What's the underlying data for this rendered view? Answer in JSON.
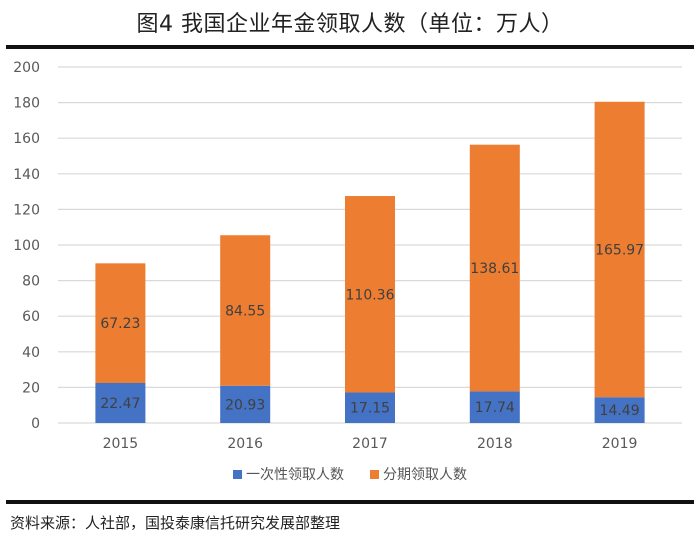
{
  "title": "图4 我国企业年金领取人数（单位：万人）",
  "footer": "资料来源：人社部，国投泰康信托研究发展部整理",
  "chart_data": {
    "type": "bar",
    "stacked": true,
    "title": "图4 我国企业年金领取人数（单位：万人）",
    "xlabel": "",
    "ylabel": "",
    "categories": [
      "2015",
      "2016",
      "2017",
      "2018",
      "2019"
    ],
    "series": [
      {
        "name": "一次性领取人数",
        "color": "#4472C4",
        "values": [
          22.47,
          20.93,
          17.15,
          17.74,
          14.49
        ],
        "labels": [
          "22.47",
          "20.93",
          "17.15",
          "17.74",
          "14.49"
        ]
      },
      {
        "name": "分期领取人数",
        "color": "#ED7D31",
        "values": [
          67.23,
          84.55,
          110.36,
          138.61,
          165.97
        ],
        "labels": [
          "67.23",
          "84.55",
          "110.36",
          "138.61",
          "165.97"
        ]
      }
    ],
    "ylim": [
      0,
      200
    ],
    "yticks": [
      0,
      20,
      40,
      60,
      80,
      100,
      120,
      140,
      160,
      180,
      200
    ],
    "ytick_labels": [
      "0",
      "20",
      "40",
      "60",
      "80",
      "100",
      "120",
      "140",
      "160",
      "180",
      "200"
    ],
    "grid": true,
    "legend_position": "bottom"
  }
}
